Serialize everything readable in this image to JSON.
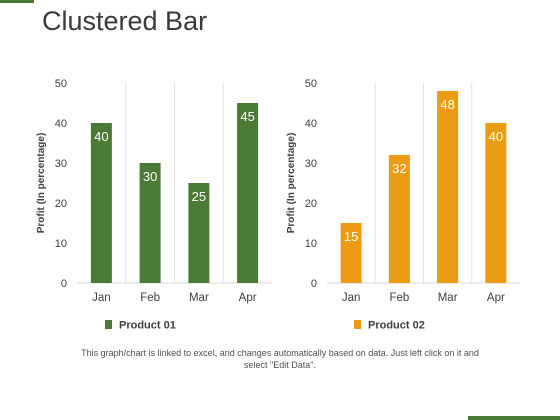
{
  "title": "Clustered Bar",
  "footer": "This graph/chart is linked to excel, and changes automatically based on data. Just left click on it and select \"Edit Data\".",
  "colors": {
    "accent": "#4a7a35",
    "product1": "#4a7a35",
    "product2": "#eb9c14",
    "label": "#ffffff"
  },
  "chart_data": [
    {
      "type": "bar",
      "categories": [
        "Jan",
        "Feb",
        "Mar",
        "Apr"
      ],
      "series": [
        {
          "name": "Product 01",
          "values": [
            40,
            30,
            25,
            45
          ]
        }
      ],
      "ylabel": "Profit  (In percentage)",
      "ylim": [
        0,
        50
      ],
      "yticks": [
        0,
        10,
        20,
        30,
        40,
        50
      ],
      "grid": true,
      "legend": "bottom",
      "data_labels": true
    },
    {
      "type": "bar",
      "categories": [
        "Jan",
        "Feb",
        "Mar",
        "Apr"
      ],
      "series": [
        {
          "name": "Product 02",
          "values": [
            15,
            32,
            48,
            40
          ]
        }
      ],
      "ylabel": "Profit  (In percentage)",
      "ylim": [
        0,
        50
      ],
      "yticks": [
        0,
        10,
        20,
        30,
        40,
        50
      ],
      "grid": true,
      "legend": "bottom",
      "data_labels": true
    }
  ]
}
